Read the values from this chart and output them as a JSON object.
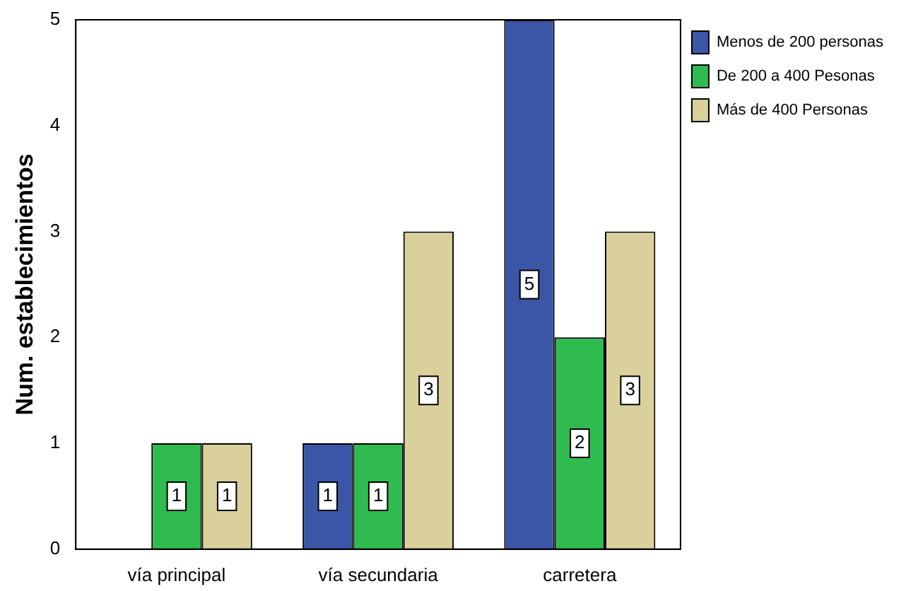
{
  "chart_data": {
    "type": "bar",
    "ylabel": "Num. establecimientos",
    "categories": [
      "vía principal",
      "vía secundaria",
      "carretera"
    ],
    "series": [
      {
        "name": "Menos de 200 personas",
        "color": "#3b56a6",
        "values": [
          null,
          1,
          5
        ]
      },
      {
        "name": "De 200 a 400 Pesonas",
        "color": "#2fbb4f",
        "values": [
          1,
          1,
          2
        ]
      },
      {
        "name": "Más de 400 Personas",
        "color": "#d9d09c",
        "values": [
          1,
          3,
          3
        ]
      }
    ],
    "ylim": [
      0,
      5
    ],
    "yticks": [
      0,
      1,
      2,
      3,
      4,
      5
    ],
    "grid": false,
    "legend": "right",
    "data_labels": true
  }
}
